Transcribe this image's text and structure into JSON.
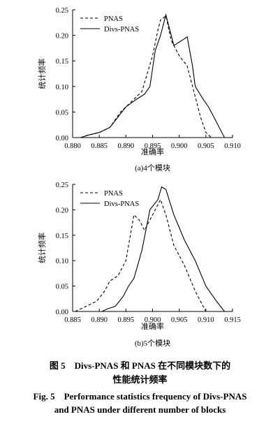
{
  "chart_data": [
    {
      "type": "line",
      "caption": "(a)4个模块",
      "xlabel": "准确率",
      "ylabel": "统计频率",
      "xlim": [
        0.88,
        0.91
      ],
      "ylim": [
        0.0,
        0.25
      ],
      "xticks": [
        "0.880",
        "0.885",
        "0.890",
        "0.895",
        "0.900",
        "0.905",
        "0.910"
      ],
      "yticks": [
        "0.00",
        "0.05",
        "0.10",
        "0.15",
        "0.20",
        "0.25"
      ],
      "legend_position": "top-right",
      "series": [
        {
          "name": "PNAS",
          "style": "dashed",
          "x": [
            0.8815,
            0.883,
            0.885,
            0.887,
            0.889,
            0.891,
            0.893,
            0.895,
            0.896,
            0.8965,
            0.8975,
            0.8985,
            0.9,
            0.9015,
            0.903,
            0.904,
            0.905,
            0.906
          ],
          "y": [
            0.0,
            0.005,
            0.01,
            0.02,
            0.05,
            0.07,
            0.09,
            0.16,
            0.21,
            0.23,
            0.238,
            0.19,
            0.16,
            0.14,
            0.08,
            0.04,
            0.01,
            0.0
          ]
        },
        {
          "name": "Divs-PNAS",
          "style": "solid",
          "x": [
            0.8815,
            0.883,
            0.885,
            0.887,
            0.8885,
            0.89,
            0.892,
            0.8935,
            0.8945,
            0.8955,
            0.8965,
            0.8975,
            0.899,
            0.9005,
            0.9015,
            0.9025,
            0.903,
            0.9045,
            0.9055,
            0.906,
            0.907,
            0.9085
          ],
          "y": [
            0.0,
            0.005,
            0.01,
            0.02,
            0.04,
            0.06,
            0.075,
            0.085,
            0.1,
            0.17,
            0.2,
            0.24,
            0.18,
            0.19,
            0.197,
            0.14,
            0.1,
            0.075,
            0.06,
            0.05,
            0.03,
            0.0
          ]
        }
      ]
    },
    {
      "type": "line",
      "caption": "(b)5个模块",
      "xlabel": "准确率",
      "ylabel": "统计频率",
      "xlim": [
        0.885,
        0.915
      ],
      "ylim": [
        0.0,
        0.25
      ],
      "xticks": [
        "0.885",
        "0.890",
        "0.895",
        "0.900",
        "0.905",
        "0.910",
        "0.915"
      ],
      "yticks": [
        "0.00",
        "0.05",
        "0.10",
        "0.15",
        "0.20",
        "0.25"
      ],
      "legend_position": "top-left",
      "series": [
        {
          "name": "PNAS",
          "style": "dashed",
          "x": [
            0.8855,
            0.8875,
            0.8895,
            0.891,
            0.892,
            0.8935,
            0.895,
            0.8965,
            0.8975,
            0.8985,
            0.8995,
            0.9005,
            0.9015,
            0.9025,
            0.904,
            0.906,
            0.908,
            0.91
          ],
          "y": [
            0.0,
            0.01,
            0.02,
            0.04,
            0.06,
            0.07,
            0.1,
            0.19,
            0.18,
            0.16,
            0.18,
            0.2,
            0.22,
            0.19,
            0.13,
            0.09,
            0.04,
            0.0
          ]
        },
        {
          "name": "Divs-PNAS",
          "style": "solid",
          "x": [
            0.8905,
            0.8915,
            0.893,
            0.8945,
            0.8955,
            0.8965,
            0.898,
            0.8995,
            0.901,
            0.9017,
            0.9025,
            0.904,
            0.906,
            0.908,
            0.91,
            0.912,
            0.9135
          ],
          "y": [
            0.0,
            0.005,
            0.01,
            0.03,
            0.05,
            0.065,
            0.12,
            0.2,
            0.22,
            0.245,
            0.24,
            0.19,
            0.14,
            0.1,
            0.05,
            0.02,
            0.0
          ]
        }
      ]
    }
  ],
  "caption": {
    "cn_line1": "图 5　Divs-PNAS 和 PNAS 在不同模块数下的",
    "cn_line2": "性能统计频率",
    "en_line1": "Fig. 5　Performance statistics frequency of Divs-PNAS",
    "en_line2": "and PNAS under different number of blocks"
  }
}
